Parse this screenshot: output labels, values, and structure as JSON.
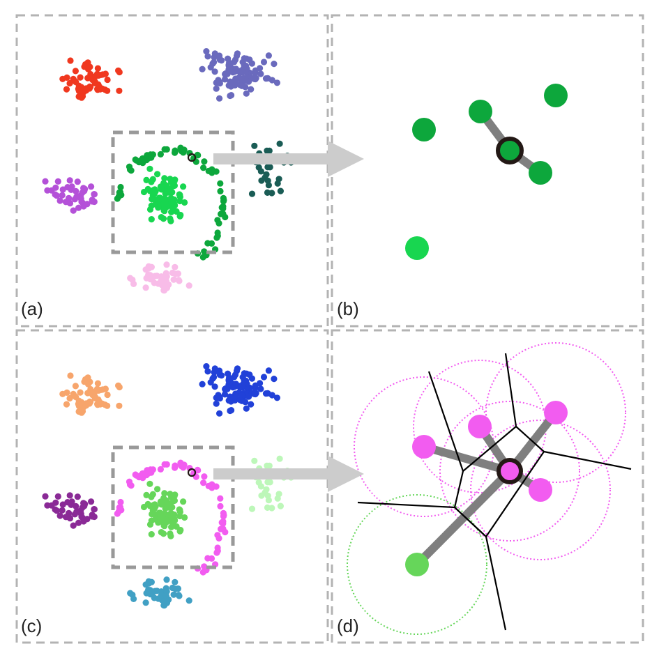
{
  "figure": {
    "panels": [
      {
        "id": "a",
        "label": "(a)"
      },
      {
        "id": "b",
        "label": "(b)"
      },
      {
        "id": "c",
        "label": "(c)"
      },
      {
        "id": "d",
        "label": "(d)"
      }
    ]
  },
  "colors": {
    "frame": "#b3b3b3",
    "zoom_box": "#999999",
    "arrow": "#cccccc",
    "link": "#7f7f7f",
    "voronoi": "#000000",
    "highlight_ring": "#231815",
    "a": {
      "red": "#f0381f",
      "blue": "#6a6abd",
      "green_dark": "#0da73c",
      "green_light": "#18d650",
      "teal": "#1a5c55",
      "purple": "#b451d8",
      "pink": "#f8bce8"
    },
    "c": {
      "orange": "#f7a56c",
      "blue": "#2141d8",
      "magenta": "#f25cf0",
      "green": "#66d65a",
      "mint": "#bdf7b9",
      "purple": "#8a2a96",
      "cyan": "#41a0c4"
    }
  },
  "icons": {
    "arrows": [
      "right-arrow-icon",
      "right-arrow-icon"
    ]
  }
}
